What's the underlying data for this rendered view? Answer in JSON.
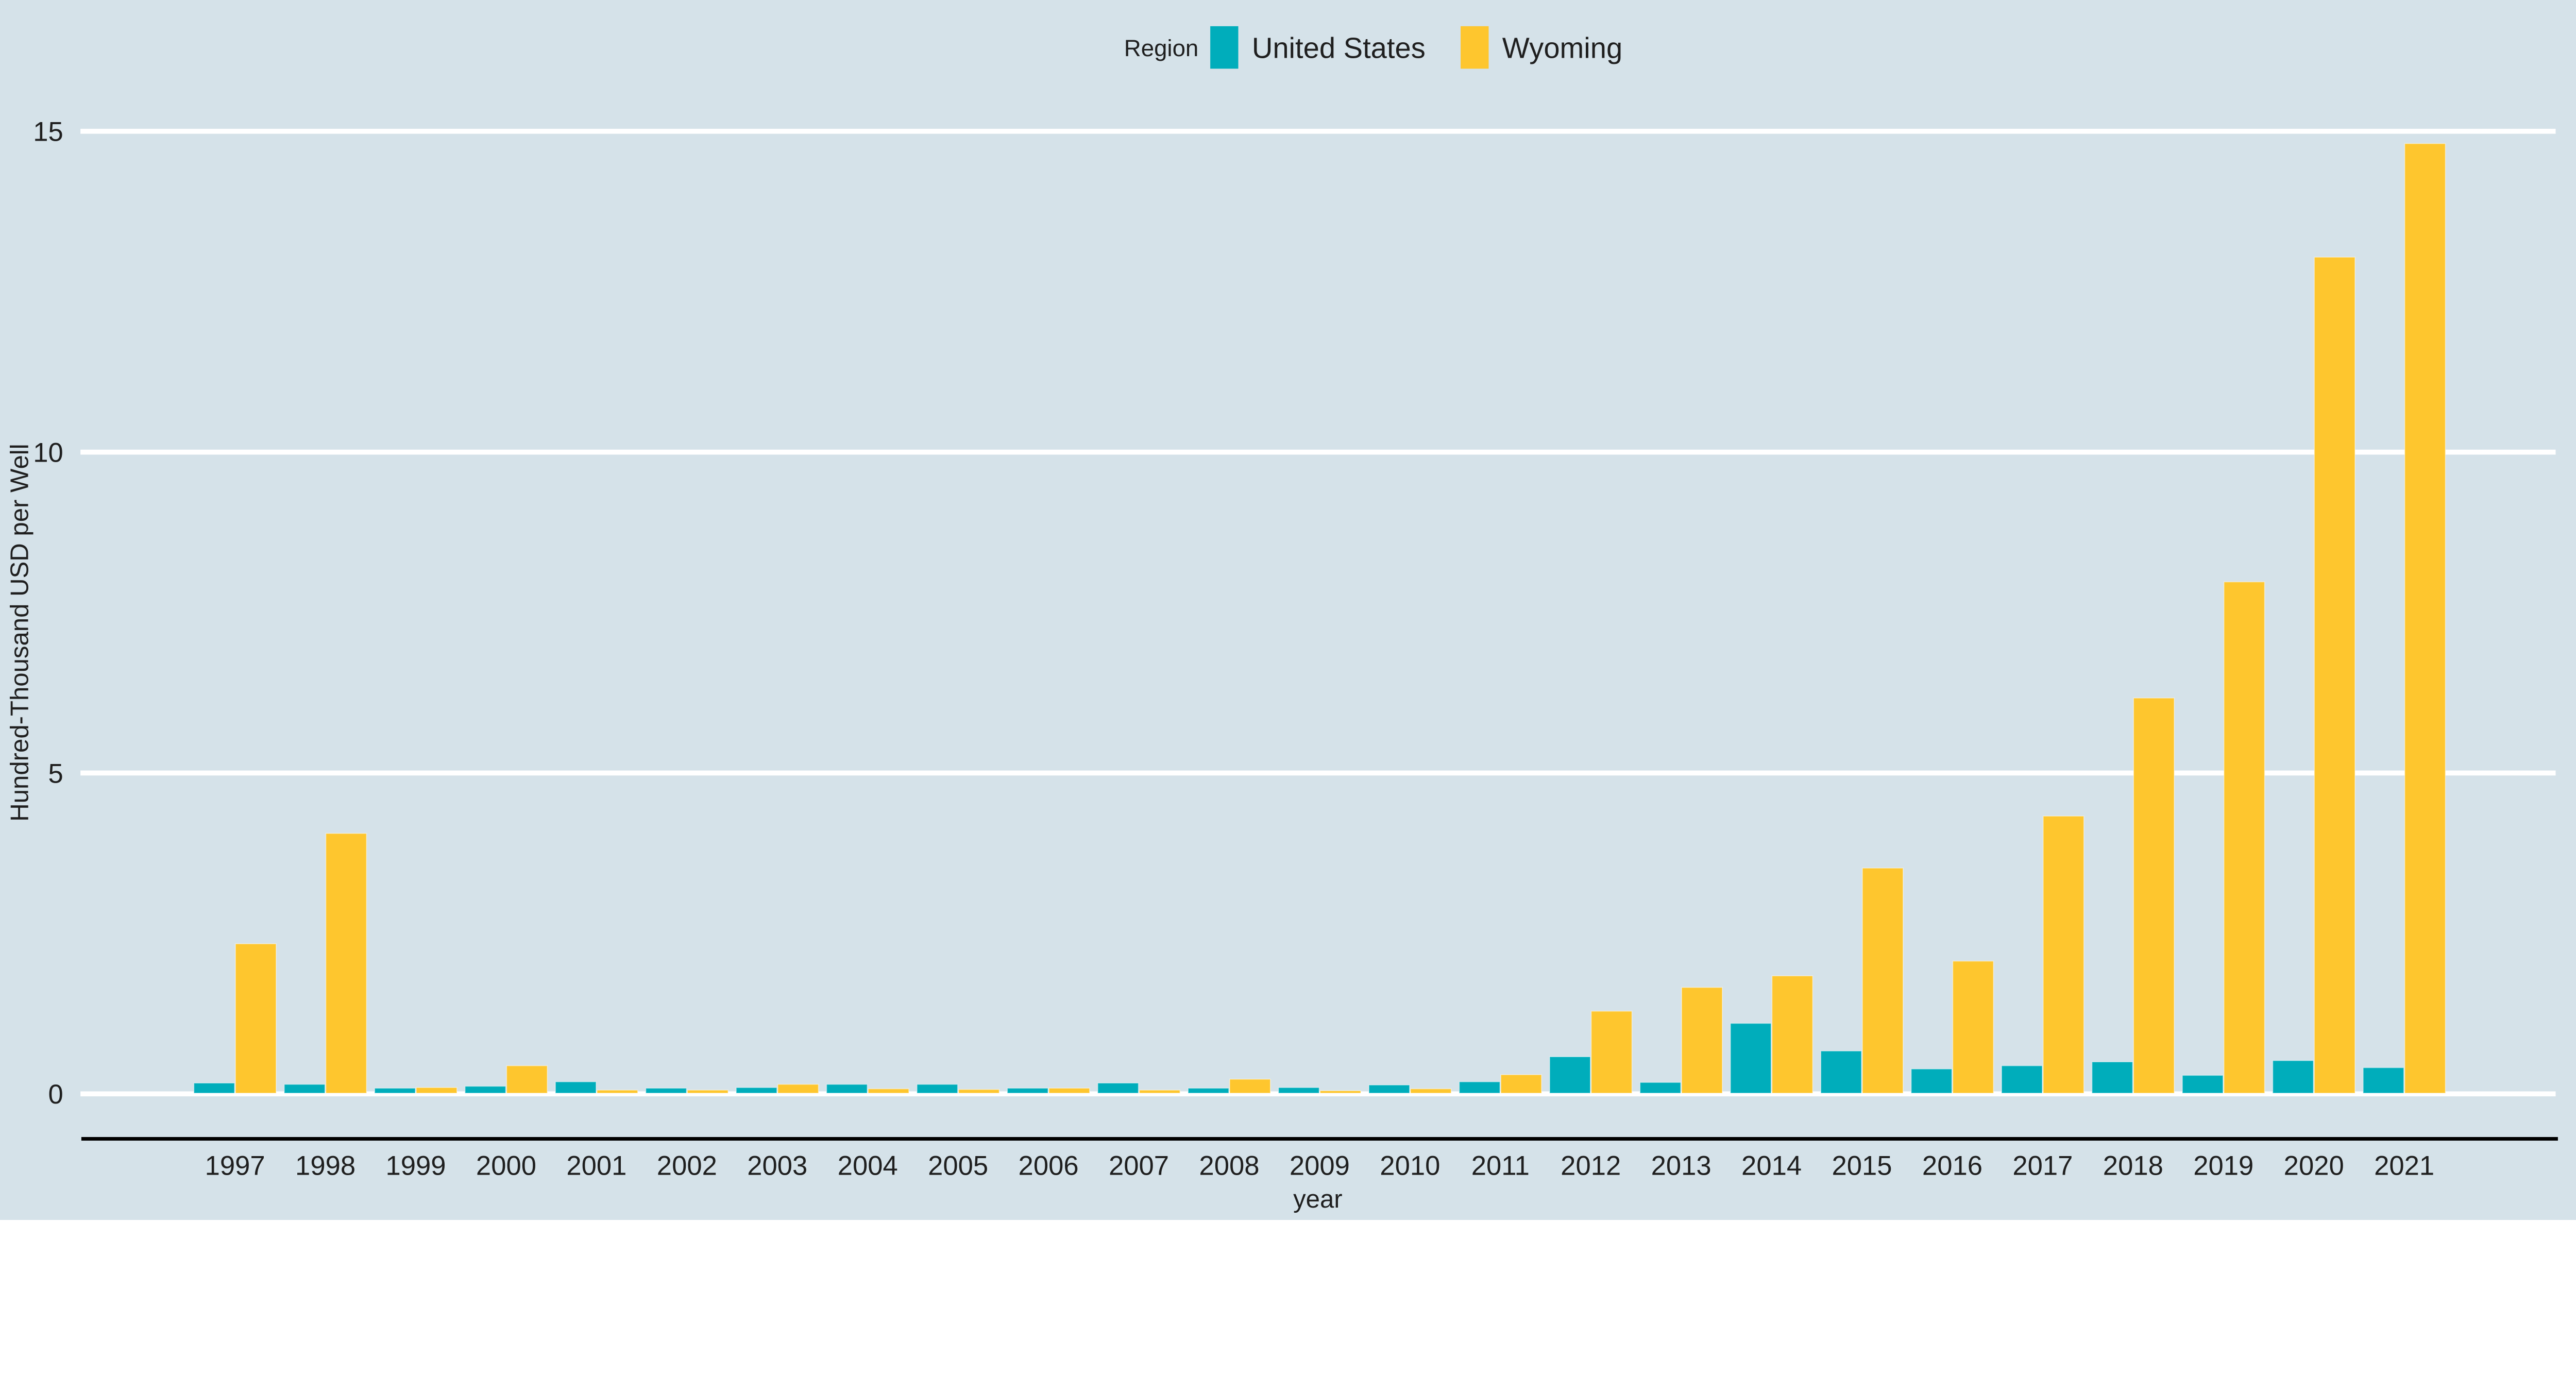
{
  "page": {
    "background_color": "#d5e2e9",
    "text_color": "#1f1f1f"
  },
  "legend": {
    "title": "Region",
    "position": "top-center",
    "items": [
      {
        "label": "United States",
        "color": "#00adbb"
      },
      {
        "label": "Wyoming",
        "color": "#fec62e"
      }
    ]
  },
  "axes": {
    "y": {
      "title": "Hundred-Thousand USD per Well",
      "tick_labels": [
        "0",
        "5",
        "10",
        "15"
      ]
    },
    "x": {
      "title": "year"
    }
  },
  "chart_data": {
    "type": "bar",
    "title": "",
    "xlabel": "year",
    "ylabel": "Hundred-Thousand USD per Well",
    "categories": [
      1997,
      1998,
      1999,
      2000,
      2001,
      2002,
      2003,
      2004,
      2005,
      2006,
      2007,
      2008,
      2009,
      2010,
      2011,
      2012,
      2013,
      2014,
      2015,
      2016,
      2017,
      2018,
      2019,
      2020,
      2021
    ],
    "series": [
      {
        "name": "United States",
        "color": "#00adbb",
        "values": [
          0.13,
          0.11,
          0.05,
          0.08,
          0.15,
          0.05,
          0.06,
          0.11,
          0.11,
          0.05,
          0.13,
          0.05,
          0.06,
          0.1,
          0.15,
          0.54,
          0.14,
          1.06,
          0.63,
          0.35,
          0.4,
          0.46,
          0.25,
          0.48,
          0.37
        ]
      },
      {
        "name": "Wyoming",
        "color": "#fec62e",
        "values": [
          2.3,
          4.02,
          0.06,
          0.4,
          0.02,
          0.02,
          0.11,
          0.04,
          0.03,
          0.05,
          0.02,
          0.19,
          0.01,
          0.04,
          0.26,
          1.25,
          1.62,
          1.8,
          3.48,
          2.03,
          4.29,
          6.13,
          7.94,
          13.0,
          14.77
        ]
      }
    ],
    "ylim": [
      0,
      15.5
    ],
    "yticks": [
      0,
      5,
      10,
      15
    ],
    "grid": true,
    "gridline_color": "#ffffff",
    "axis_line_color": "#000000",
    "legend_position": "top-center"
  }
}
